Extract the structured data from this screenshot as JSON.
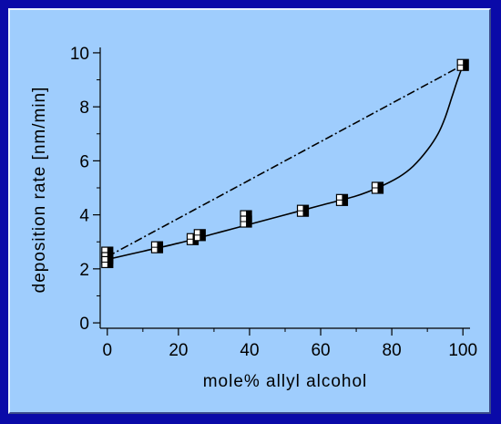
{
  "chart_data": {
    "type": "scatter",
    "title": "",
    "xlabel": "mole% allyl alcohol",
    "ylabel": "deposition rate [nm/min]",
    "xlim": [
      -2,
      102
    ],
    "ylim": [
      -0.2,
      10.2
    ],
    "xticks": [
      0,
      20,
      40,
      60,
      80,
      100
    ],
    "yticks": [
      0,
      2,
      4,
      6,
      8,
      10
    ],
    "grid": false,
    "legend": "none",
    "series": [
      {
        "marker": "square",
        "x": [
          0,
          0,
          0,
          14,
          24,
          26,
          39,
          39,
          55,
          66,
          76,
          100
        ],
        "y": [
          2.6,
          2.4,
          2.25,
          2.8,
          3.1,
          3.25,
          3.95,
          3.75,
          4.15,
          4.55,
          5.0,
          9.55
        ]
      }
    ],
    "lines": [
      {
        "style": "solid",
        "x": [
          0,
          10,
          20,
          30,
          40,
          50,
          60,
          70,
          76,
          82,
          86,
          90,
          93,
          95,
          97,
          98.5,
          100
        ],
        "y": [
          2.35,
          2.65,
          2.95,
          3.3,
          3.65,
          4.0,
          4.35,
          4.7,
          5.0,
          5.4,
          5.8,
          6.4,
          7.0,
          7.6,
          8.4,
          9.0,
          9.55
        ]
      },
      {
        "style": "dash-dot",
        "x": [
          0,
          100
        ],
        "y": [
          2.45,
          9.55
        ]
      }
    ],
    "colors": {
      "frame": "#0a0aa8",
      "panel": "#9fcdfd",
      "marks": "#000000"
    }
  }
}
